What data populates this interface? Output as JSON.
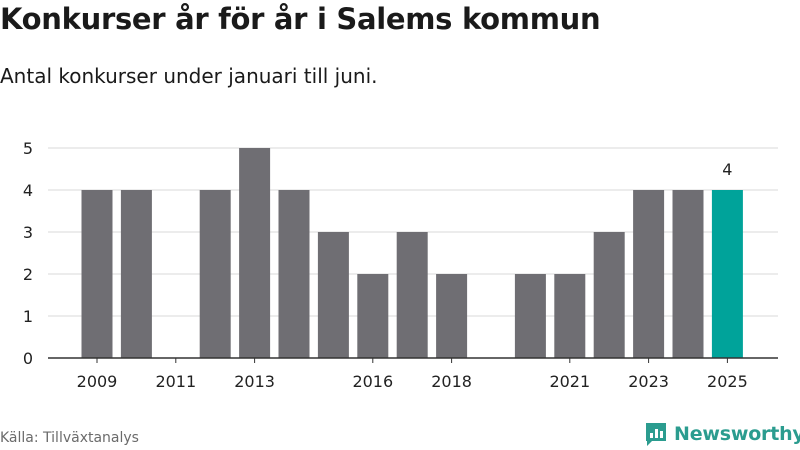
{
  "title": "Konkurser år för år i Salems kommun",
  "subtitle": "Antal konkurser under januari till juni.",
  "source": "Källa: Tillväxtanalys",
  "brand": "Newsworthy",
  "colors": {
    "bar": "#6f6e73",
    "highlight": "#00a39a",
    "grid": "#d9d9d9",
    "axis": "#333333",
    "brand": "#2b9c8f"
  },
  "chart_data": {
    "type": "bar",
    "categories": [
      "2009",
      "2010",
      "2011",
      "2012",
      "2013",
      "2014",
      "2015",
      "2016",
      "2017",
      "2018",
      "2019",
      "2020",
      "2021",
      "2022",
      "2023",
      "2024",
      "2025"
    ],
    "values": [
      4,
      4,
      0,
      4,
      5,
      4,
      3,
      2,
      3,
      2,
      0,
      2,
      2,
      3,
      4,
      4,
      4
    ],
    "tick_labels": [
      "2009",
      "2011",
      "2013",
      "2016",
      "2018",
      "2021",
      "2023",
      "2025"
    ],
    "y_ticks": [
      0,
      1,
      2,
      3,
      4,
      5
    ],
    "ylim": [
      0,
      5
    ],
    "highlight_category": "2025",
    "highlight_label": "4",
    "grid": true,
    "xlabel": "",
    "ylabel": ""
  }
}
